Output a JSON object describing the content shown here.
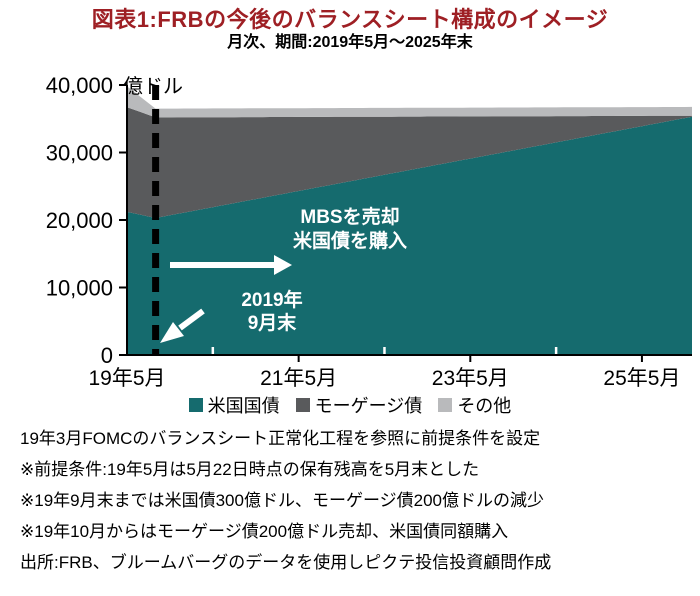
{
  "chart_data": {
    "type": "area",
    "stacked": true,
    "title": "図表1:FRBの今後のバランスシート構成のイメージ",
    "subtitle": "月次、期間:2019年5月〜2025年末",
    "unit": "億ドル",
    "ylim": [
      0,
      40000
    ],
    "y_ticks": [
      0,
      10000,
      20000,
      30000,
      40000
    ],
    "x_months_total": 79,
    "x_ticks": [
      {
        "label": "19年5月",
        "t": 0
      },
      {
        "label": "21年5月",
        "t": 24
      },
      {
        "label": "23年5月",
        "t": 48
      },
      {
        "label": "25年5月",
        "t": 72
      }
    ],
    "x_minor_ticks": [
      12,
      36,
      60
    ],
    "series": [
      {
        "name": "米国国債",
        "color": "#156b6e",
        "points": [
          [
            0,
            21200
          ],
          [
            4,
            20300
          ],
          [
            79,
            35300
          ]
        ]
      },
      {
        "name": "モーゲージ債",
        "color": "#595a5c",
        "points": [
          [
            0,
            15500
          ],
          [
            4,
            14900
          ],
          [
            79,
            150
          ]
        ]
      },
      {
        "name": "その他",
        "color": "#b9babc",
        "points": [
          [
            0,
            3100
          ],
          [
            4,
            1300
          ],
          [
            79,
            1300
          ]
        ]
      }
    ],
    "event_month": 4,
    "annotations": {
      "action_line1": "MBSを売却",
      "action_line2": "米国債を購入",
      "event_line1": "2019年",
      "event_line2": "9月末"
    },
    "legend_position": "bottom",
    "grid": false
  },
  "footnotes": [
    "19年3月FOMCのバランスシート正常化工程を参照に前提条件を設定",
    "※前提条件:19年5月は5月22日時点の保有残高を5月末とした",
    "※19年9月末までは米国債300億ドル、モーゲージ債200億ドルの減少",
    "※19年10月からはモーゲージ債200億ドル売却、米国債同額購入",
    "出所:FRB、ブルームバーグのデータを使用しピクテ投信投資顧問作成"
  ]
}
